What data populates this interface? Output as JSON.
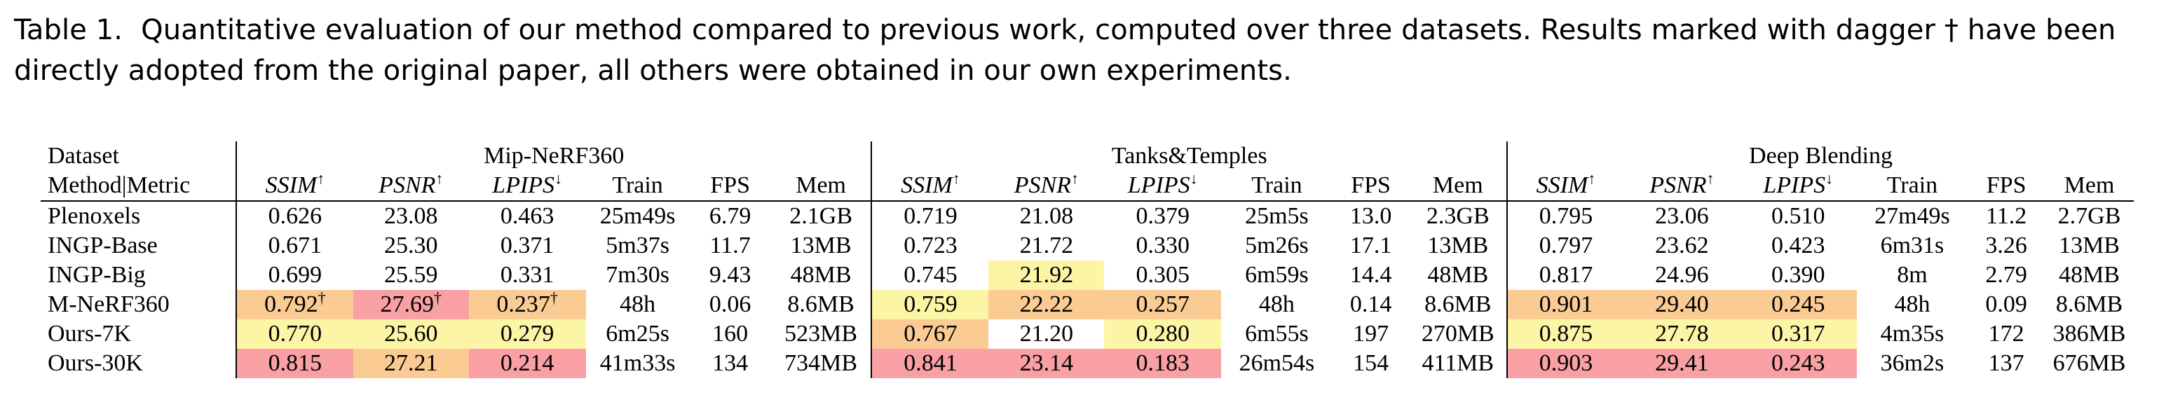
{
  "caption": {
    "label": "Table 1.",
    "text": "Quantitative evaluation of our method compared to previous work, computed over three datasets. Results marked with dagger † have been directly adopted from the original paper, all others were obtained in our own experiments."
  },
  "header": {
    "dataset_label": "Dataset",
    "method_label": "Method|Metric",
    "datasets": [
      "Mip-NeRF360",
      "Tanks&Temples",
      "Deep Blending"
    ],
    "metrics": [
      {
        "name": "SSIM",
        "arrow": "↑"
      },
      {
        "name": "PSNR",
        "arrow": "↑"
      },
      {
        "name": "LPIPS",
        "arrow": "↓"
      },
      {
        "name": "Train",
        "arrow": ""
      },
      {
        "name": "FPS",
        "arrow": ""
      },
      {
        "name": "Mem",
        "arrow": ""
      }
    ]
  },
  "rows": [
    {
      "method": "Plenoxels",
      "cells": [
        [
          "0.626",
          "23.08",
          "0.463",
          "25m49s",
          "6.79",
          "2.1GB"
        ],
        [
          "0.719",
          "21.08",
          "0.379",
          "25m5s",
          "13.0",
          "2.3GB"
        ],
        [
          "0.795",
          "23.06",
          "0.510",
          "27m49s",
          "11.2",
          "2.7GB"
        ]
      ]
    },
    {
      "method": "INGP-Base",
      "cells": [
        [
          "0.671",
          "25.30",
          "0.371",
          "5m37s",
          "11.7",
          "13MB"
        ],
        [
          "0.723",
          "21.72",
          "0.330",
          "5m26s",
          "17.1",
          "13MB"
        ],
        [
          "0.797",
          "23.62",
          "0.423",
          "6m31s",
          "3.26",
          "13MB"
        ]
      ]
    },
    {
      "method": "INGP-Big",
      "cells": [
        [
          "0.699",
          "25.59",
          "0.331",
          "7m30s",
          "9.43",
          "48MB"
        ],
        [
          "0.745",
          "21.92",
          "0.305",
          "6m59s",
          "14.4",
          "48MB"
        ],
        [
          "0.817",
          "24.96",
          "0.390",
          "8m",
          "2.79",
          "48MB"
        ]
      ]
    },
    {
      "method": "M-NeRF360",
      "cells": [
        [
          "0.792",
          "27.69",
          "0.237",
          "48h",
          "0.06",
          "8.6MB"
        ],
        [
          "0.759",
          "22.22",
          "0.257",
          "48h",
          "0.14",
          "8.6MB"
        ],
        [
          "0.901",
          "29.40",
          "0.245",
          "48h",
          "0.09",
          "8.6MB"
        ]
      ]
    },
    {
      "method": "Ours-7K",
      "cells": [
        [
          "0.770",
          "25.60",
          "0.279",
          "6m25s",
          "160",
          "523MB"
        ],
        [
          "0.767",
          "21.20",
          "0.280",
          "6m55s",
          "197",
          "270MB"
        ],
        [
          "0.875",
          "27.78",
          "0.317",
          "4m35s",
          "172",
          "386MB"
        ]
      ]
    },
    {
      "method": "Ours-30K",
      "cells": [
        [
          "0.815",
          "27.21",
          "0.214",
          "41m33s",
          "134",
          "734MB"
        ],
        [
          "0.841",
          "23.14",
          "0.183",
          "26m54s",
          "154",
          "411MB"
        ],
        [
          "0.903",
          "29.41",
          "0.243",
          "36m2s",
          "137",
          "676MB"
        ]
      ]
    }
  ],
  "dagger": "†",
  "highlight_colors": {
    "best": "#f8a0a4",
    "second": "#fbcb94",
    "third": "#fdf5a6"
  }
}
